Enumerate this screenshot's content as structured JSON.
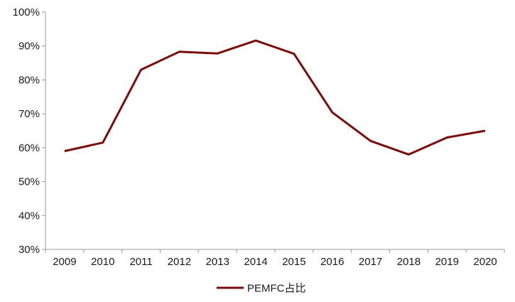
{
  "chart_data": {
    "type": "line",
    "title": "",
    "xlabel": "",
    "ylabel": "",
    "categories": [
      "2009",
      "2010",
      "2011",
      "2012",
      "2013",
      "2014",
      "2015",
      "2016",
      "2017",
      "2018",
      "2019",
      "2020"
    ],
    "series": [
      {
        "name": "PEMFC占比",
        "values": [
          59,
          61.5,
          83,
          88.3,
          87.8,
          91.6,
          87.7,
          70.4,
          62,
          58,
          63,
          65
        ],
        "color": "#7B0C0C"
      }
    ],
    "ylim": [
      30,
      100
    ],
    "yticks": [
      30,
      40,
      50,
      60,
      70,
      80,
      90,
      100
    ],
    "ytick_labels": [
      "30%",
      "40%",
      "50%",
      "60%",
      "70%",
      "80%",
      "90%",
      "100%"
    ],
    "grid": false,
    "legend_position": "bottom-center"
  }
}
